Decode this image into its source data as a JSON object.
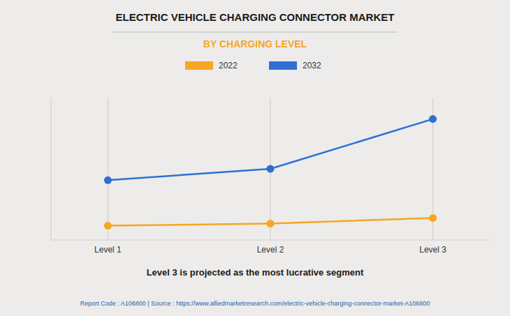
{
  "chart_data": {
    "type": "line",
    "title": "ELECTRIC VEHICLE CHARGING CONNECTOR MARKET",
    "subtitle": "BY CHARGING LEVEL",
    "categories": [
      "Level 1",
      "Level 2",
      "Level 3"
    ],
    "series": [
      {
        "name": "2022",
        "color": "#F5A623",
        "values": [
          1.0,
          1.15,
          1.55
        ]
      },
      {
        "name": "2032",
        "color": "#2E6FD4",
        "values": [
          4.2,
          5.0,
          8.5
        ]
      }
    ],
    "ylim": [
      0,
      10
    ],
    "yticks": [],
    "grid": true,
    "legend": "top",
    "marker": "circle",
    "tick_labels": "x",
    "annotations": [
      "Level 3 is projected as the most lucrative segment",
      "Report Code : A106800  |  Source : https://www.alliedmarketresearch.com/electric-vehicle-charging-connector-market-A106800"
    ]
  }
}
